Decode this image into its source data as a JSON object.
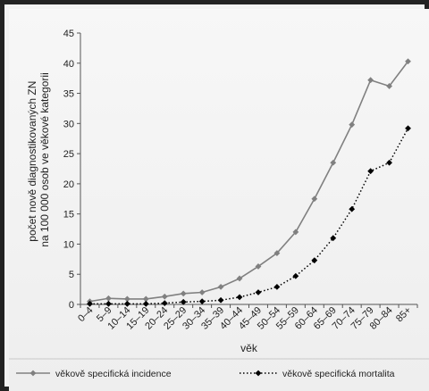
{
  "chart_data": {
    "type": "line",
    "title": "",
    "xlabel": "věk",
    "ylabel": "počet nově diagnostikovaných ZN na 100 000 osob ve věkové kategorii",
    "ylabel_lines": [
      "počet nově diagnostikovaných ZN",
      "na 100 000 osob ve věkové kategorii"
    ],
    "categories": [
      "0–4",
      "5–9",
      "10–14",
      "15–19",
      "20–24",
      "25–29",
      "30–34",
      "35–39",
      "40–44",
      "45–49",
      "50–54",
      "55–59",
      "60–64",
      "65–69",
      "70–74",
      "75–79",
      "80–84",
      "85+"
    ],
    "ylim": [
      0,
      45
    ],
    "yticks": [
      0,
      5,
      10,
      15,
      20,
      25,
      30,
      35,
      40,
      45
    ],
    "grid": false,
    "legend_position": "bottom",
    "series": [
      {
        "name": "věkově specifická incidence",
        "color": "#808080",
        "line_style": "solid",
        "marker": "diamond",
        "values": [
          0.5,
          1.0,
          0.9,
          0.9,
          1.3,
          1.8,
          2.0,
          2.9,
          4.3,
          6.3,
          8.5,
          12.0,
          17.5,
          23.5,
          29.8,
          37.2,
          36.2,
          40.3
        ]
      },
      {
        "name": "věkově specifická mortalita",
        "color": "#000000",
        "line_style": "dotted",
        "marker": "diamond",
        "values": [
          0.1,
          0.1,
          0.1,
          0.1,
          0.2,
          0.4,
          0.5,
          0.7,
          1.2,
          2.0,
          2.9,
          4.7,
          7.3,
          11.0,
          15.8,
          22.1,
          23.5,
          29.2
        ]
      }
    ]
  }
}
